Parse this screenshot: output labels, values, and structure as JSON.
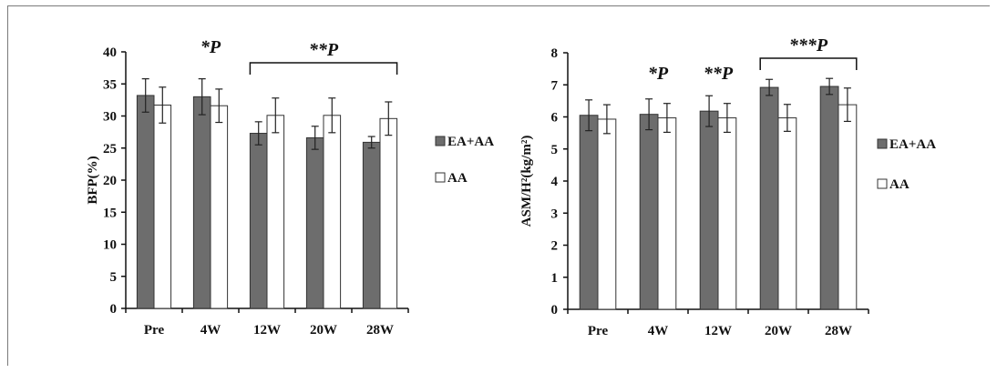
{
  "chart_data": [
    {
      "type": "bar",
      "ylabel": "BFP(%)",
      "ylim": [
        0,
        40
      ],
      "yticks": [
        0,
        5,
        10,
        15,
        20,
        25,
        30,
        35,
        40
      ],
      "categories": [
        "Pre",
        "4W",
        "12W",
        "20W",
        "28W"
      ],
      "series": [
        {
          "name": "EA+AA",
          "color": "#6d6d6d",
          "values": [
            33.2,
            33.0,
            27.3,
            26.6,
            25.9
          ],
          "errors": [
            2.6,
            2.8,
            1.8,
            1.8,
            0.9
          ]
        },
        {
          "name": "AA",
          "color": "#ffffff",
          "values": [
            31.7,
            31.6,
            30.1,
            30.1,
            29.6
          ],
          "errors": [
            2.8,
            2.6,
            2.7,
            2.7,
            2.6
          ]
        }
      ],
      "legend": {
        "position": "right"
      },
      "annotations": [
        {
          "text": "*P",
          "category": "4W"
        },
        {
          "text": "**P",
          "categories": [
            "12W",
            "28W"
          ],
          "bracket": true
        }
      ]
    },
    {
      "type": "bar",
      "ylabel": "ASM/H²(kg/m²)",
      "ylim": [
        0,
        8
      ],
      "yticks": [
        0,
        1,
        2,
        3,
        4,
        5,
        6,
        7,
        8
      ],
      "categories": [
        "Pre",
        "4W",
        "12W",
        "20W",
        "28W"
      ],
      "series": [
        {
          "name": "EA+AA",
          "color": "#6d6d6d",
          "values": [
            6.05,
            6.08,
            6.18,
            6.92,
            6.95
          ],
          "errors": [
            0.48,
            0.48,
            0.48,
            0.25,
            0.25
          ]
        },
        {
          "name": "AA",
          "color": "#ffffff",
          "values": [
            5.93,
            5.97,
            5.97,
            5.97,
            6.38
          ],
          "errors": [
            0.45,
            0.45,
            0.45,
            0.42,
            0.52
          ]
        }
      ],
      "legend": {
        "position": "right"
      },
      "annotations": [
        {
          "text": "*P",
          "category": "4W"
        },
        {
          "text": "**P",
          "category": "12W"
        },
        {
          "text": "***P",
          "categories": [
            "20W",
            "28W"
          ],
          "bracket": true
        }
      ]
    }
  ]
}
